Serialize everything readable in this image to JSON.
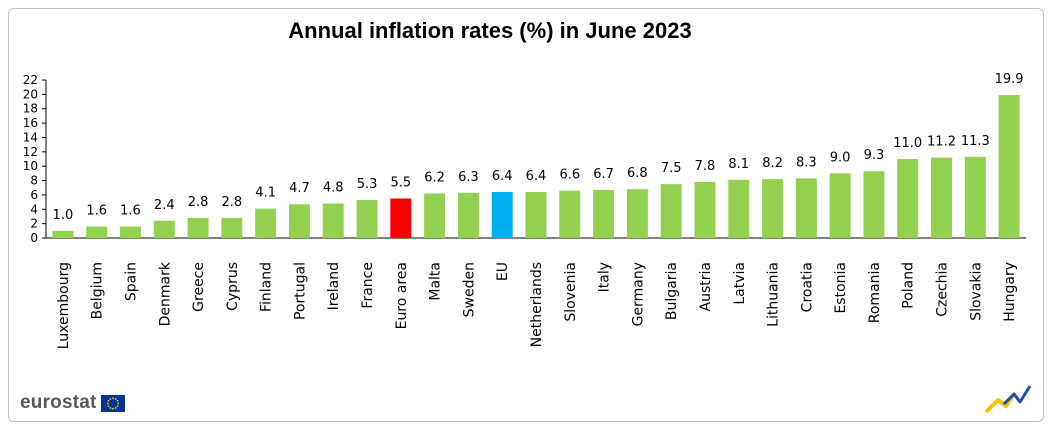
{
  "chart_data": {
    "type": "bar",
    "title": "Annual inflation rates (%) in June 2023",
    "xlabel": "",
    "ylabel": "",
    "ylim": [
      0,
      22
    ],
    "yticks": [
      0,
      2,
      4,
      6,
      8,
      10,
      12,
      14,
      16,
      18,
      20,
      22
    ],
    "grid": false,
    "legend": "none",
    "categories": [
      "Luxembourg",
      "Belgium",
      "Spain",
      "Denmark",
      "Greece",
      "Cyprus",
      "Finland",
      "Portugal",
      "Ireland",
      "France",
      "Euro area",
      "Malta",
      "Sweden",
      "EU",
      "Netherlands",
      "Slovenia",
      "Italy",
      "Germany",
      "Bulgaria",
      "Austria",
      "Latvia",
      "Lithuania",
      "Croatia",
      "Estonia",
      "Romania",
      "Poland",
      "Czechia",
      "Slovakia",
      "Hungary"
    ],
    "values": [
      1.0,
      1.6,
      1.6,
      2.4,
      2.8,
      2.8,
      4.1,
      4.7,
      4.8,
      5.3,
      5.5,
      6.2,
      6.3,
      6.4,
      6.4,
      6.6,
      6.7,
      6.8,
      7.5,
      7.8,
      8.1,
      8.2,
      8.3,
      9.0,
      9.3,
      11.0,
      11.2,
      11.3,
      19.9
    ],
    "value_labels": [
      "1.0",
      "1.6",
      "1.6",
      "2.4",
      "2.8",
      "2.8",
      "4.1",
      "4.7",
      "4.8",
      "5.3",
      "5.5",
      "6.2",
      "6.3",
      "6.4",
      "6.4",
      "6.6",
      "6.7",
      "6.8",
      "7.5",
      "7.8",
      "8.1",
      "8.2",
      "8.3",
      "9.0",
      "9.3",
      "11.0",
      "11.2",
      "11.3",
      "19.9"
    ],
    "colors": {
      "default": "#92d050",
      "Euro area": "#ff0000",
      "EU": "#00b0f0"
    }
  },
  "branding": {
    "logo_text": "eurostat",
    "flag_color": "#003399",
    "star_color": "#ffcc00"
  }
}
